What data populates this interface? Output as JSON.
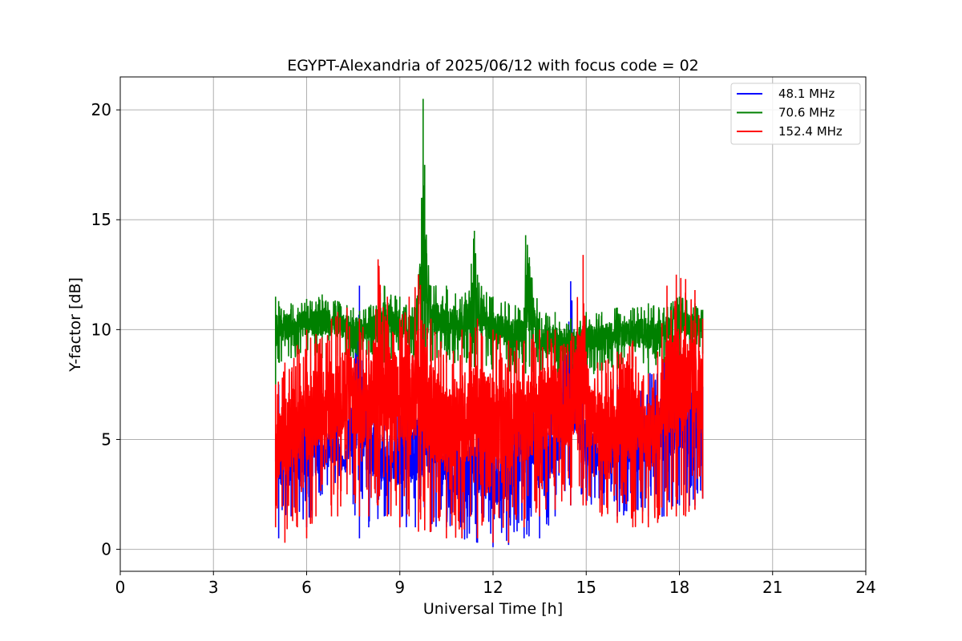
{
  "chart_data": {
    "type": "line",
    "title": "EGYPT-Alexandria of 2025/06/12 with focus code = 02",
    "xlabel": "Universal Time [h]",
    "ylabel": "Y-factor [dB]",
    "xlim": [
      0,
      24
    ],
    "ylim": [
      -1,
      21.5
    ],
    "xticks": [
      0,
      3,
      6,
      9,
      12,
      15,
      18,
      21,
      24
    ],
    "yticks": [
      0,
      5,
      10,
      15,
      20
    ],
    "grid": true,
    "legend_position": "top-right",
    "series": [
      {
        "name": "48.1 MHz",
        "color": "#0000ff",
        "x": [
          5.0,
          5.1,
          5.5,
          6.0,
          6.5,
          7.0,
          7.2,
          7.7,
          8.0,
          8.5,
          9.0,
          9.5,
          10.0,
          10.5,
          11.0,
          11.5,
          12.0,
          12.5,
          13.0,
          13.5,
          14.0,
          14.5,
          15.0,
          15.5,
          16.0,
          16.5,
          17.0,
          17.5,
          18.0,
          18.5,
          18.75
        ],
        "values": [
          5.0,
          7.5,
          5.5,
          7.0,
          5.5,
          6.0,
          4.0,
          12.0,
          7.5,
          6.0,
          6.5,
          7.0,
          8.5,
          6.0,
          5.0,
          6.5,
          5.0,
          6.0,
          7.0,
          7.0,
          6.5,
          12.2,
          6.5,
          5.5,
          7.5,
          7.0,
          8.0,
          8.5,
          9.0,
          8.5,
          7.4
        ],
        "lower": [
          4.0,
          0.5,
          1.5,
          1.0,
          2.5,
          3.0,
          3.8,
          0.5,
          1.0,
          1.5,
          1.0,
          1.0,
          0.8,
          1.0,
          0.5,
          0.3,
          0.1,
          0.2,
          0.5,
          0.5,
          1.5,
          2.0,
          2.0,
          2.0,
          1.5,
          1.5,
          1.5,
          1.5,
          2.0,
          2.0,
          2.3
        ]
      },
      {
        "name": "70.6 MHz",
        "color": "#008000",
        "x": [
          5.0,
          5.1,
          5.5,
          6.0,
          6.5,
          7.0,
          7.5,
          8.0,
          8.5,
          9.0,
          9.5,
          9.7,
          9.75,
          9.8,
          10.0,
          10.5,
          11.0,
          11.3,
          11.4,
          11.5,
          12.0,
          12.5,
          13.0,
          13.05,
          13.5,
          14.0,
          14.5,
          15.0,
          15.5,
          16.0,
          16.5,
          17.0,
          17.5,
          18.0,
          18.5,
          18.75
        ],
        "values": [
          11.5,
          11.3,
          11.2,
          11.4,
          11.6,
          11.3,
          11.0,
          11.0,
          12.0,
          11.5,
          11.0,
          16.0,
          20.5,
          17.5,
          12.0,
          12.0,
          11.5,
          13.0,
          14.5,
          12.5,
          11.5,
          11.2,
          11.0,
          14.3,
          10.8,
          10.8,
          10.5,
          10.8,
          10.8,
          11.0,
          11.0,
          11.2,
          11.0,
          11.5,
          11.2,
          10.9
        ],
        "lower": [
          7.5,
          8.5,
          8.7,
          8.8,
          8.7,
          8.8,
          8.7,
          8.6,
          8.5,
          8.6,
          8.7,
          8.7,
          8.7,
          8.6,
          8.5,
          8.5,
          8.4,
          8.3,
          8.3,
          8.3,
          8.2,
          8.0,
          8.0,
          8.0,
          7.9,
          7.8,
          7.8,
          7.9,
          8.0,
          8.2,
          8.3,
          8.0,
          8.5,
          8.8,
          8.8,
          8.9
        ]
      },
      {
        "name": "152.4 MHz",
        "color": "#ff0000",
        "x": [
          5.0,
          5.3,
          5.7,
          6.0,
          6.3,
          6.8,
          7.0,
          7.3,
          7.7,
          8.0,
          8.3,
          8.6,
          9.0,
          9.3,
          9.6,
          10.0,
          10.5,
          11.0,
          11.5,
          12.0,
          12.5,
          13.0,
          13.5,
          14.0,
          14.5,
          14.9,
          15.0,
          15.5,
          16.0,
          16.5,
          17.0,
          17.3,
          17.6,
          17.9,
          18.2,
          18.5,
          18.75
        ],
        "values": [
          7.5,
          8.5,
          9.3,
          10.0,
          9.8,
          10.5,
          10.8,
          11.0,
          10.5,
          9.5,
          13.2,
          11.5,
          10.5,
          11.5,
          12.5,
          10.5,
          9.0,
          10.0,
          10.5,
          10.0,
          9.5,
          9.5,
          10.0,
          10.0,
          9.5,
          13.4,
          9.0,
          8.5,
          9.0,
          9.5,
          8.0,
          9.0,
          12.0,
          12.5,
          12.3,
          11.8,
          10.5
        ],
        "lower": [
          1.0,
          0.3,
          1.0,
          0.5,
          1.5,
          1.5,
          1.5,
          2.5,
          1.5,
          1.5,
          2.0,
          1.5,
          1.0,
          1.5,
          0.8,
          0.8,
          0.5,
          0.5,
          0.5,
          0.3,
          0.3,
          1.0,
          1.5,
          1.8,
          2.0,
          2.0,
          2.0,
          1.5,
          1.2,
          1.0,
          1.0,
          1.2,
          1.5,
          1.5,
          1.5,
          1.8,
          2.3
        ]
      }
    ]
  }
}
